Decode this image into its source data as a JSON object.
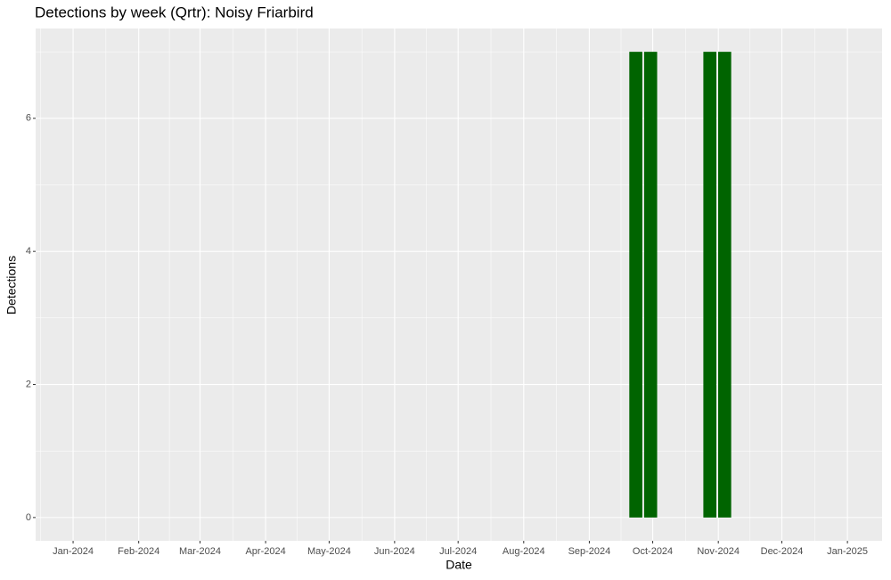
{
  "chart_data": {
    "type": "bar",
    "title": "Detections by week (Qrtr): Noisy Friarbird",
    "x_label": "Date",
    "y_label": "Detections",
    "x": [
      38,
      39,
      43,
      44
    ],
    "values": [
      7,
      7,
      7,
      7
    ],
    "color": "#006400",
    "xlim": [
      -2.53,
      54.63
    ],
    "xticks": [
      {
        "value": 0,
        "label": "Jan-2024"
      },
      {
        "value": 4.43,
        "label": "Feb-2024"
      },
      {
        "value": 8.57,
        "label": "Mar-2024"
      },
      {
        "value": 13,
        "label": "Apr-2024"
      },
      {
        "value": 17.29,
        "label": "May-2024"
      },
      {
        "value": 21.71,
        "label": "Jun-2024"
      },
      {
        "value": 26,
        "label": "Jul-2024"
      },
      {
        "value": 30.43,
        "label": "Aug-2024"
      },
      {
        "value": 34.86,
        "label": "Sep-2024"
      },
      {
        "value": 39.14,
        "label": "Oct-2024"
      },
      {
        "value": 43.57,
        "label": "Nov-2024"
      },
      {
        "value": 47.86,
        "label": "Dec-2024"
      },
      {
        "value": 52.29,
        "label": "Jan-2025"
      }
    ],
    "ylim": [
      -0.35,
      7.35
    ],
    "yticks": [
      0,
      2,
      4,
      6
    ],
    "grid": true
  }
}
